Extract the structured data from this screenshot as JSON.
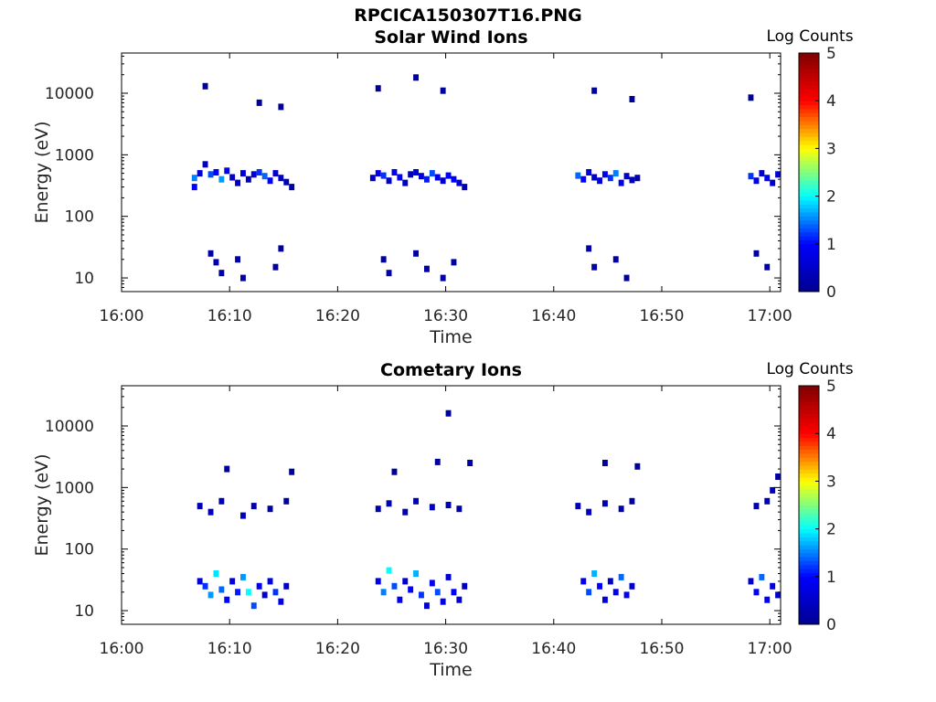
{
  "figure_title": "RPCICA150307T16.PNG",
  "colors": {
    "jet_stops": [
      "#00008f",
      "#0000ff",
      "#00ffff",
      "#ffff00",
      "#ff0000",
      "#800000"
    ]
  },
  "chart_data": [
    {
      "type": "heatmap",
      "title": "Solar Wind Ions",
      "xlabel": "Time",
      "ylabel": "Energy (eV)",
      "xlim": [
        "16:00",
        "17:01"
      ],
      "ylim": [
        6,
        45000
      ],
      "yscale": "log",
      "x_ticks": [
        "16:00",
        "16:10",
        "16:20",
        "16:30",
        "16:40",
        "16:50",
        "17:00"
      ],
      "y_ticks": [
        "10",
        "100",
        "1000",
        "10000"
      ],
      "colorbar": {
        "label": "Log Counts",
        "range": [
          0,
          5
        ],
        "ticks": [
          "0",
          "1",
          "2",
          "3",
          "4",
          "5"
        ]
      },
      "grid": false,
      "cells": [
        [
          "16:06:30",
          420,
          1.5
        ],
        [
          "16:06:30",
          300,
          1.0
        ],
        [
          "16:07:00",
          500,
          0.6
        ],
        [
          "16:07:30",
          700,
          0.3
        ],
        [
          "16:08:00",
          480,
          1.3
        ],
        [
          "16:08:30",
          520,
          1.0
        ],
        [
          "16:09:00",
          400,
          1.6
        ],
        [
          "16:09:30",
          550,
          0.8
        ],
        [
          "16:10:00",
          430,
          0.5
        ],
        [
          "16:10:30",
          350,
          0.4
        ],
        [
          "16:11:00",
          500,
          0.6
        ],
        [
          "16:11:30",
          400,
          0.3
        ],
        [
          "16:12:00",
          480,
          0.7
        ],
        [
          "16:12:30",
          520,
          1.2
        ],
        [
          "16:13:00",
          450,
          1.4
        ],
        [
          "16:13:30",
          380,
          1.0
        ],
        [
          "16:14:00",
          500,
          0.6
        ],
        [
          "16:14:30",
          420,
          0.5
        ],
        [
          "16:15:00",
          360,
          0.3
        ],
        [
          "16:15:30",
          300,
          0.2
        ],
        [
          "16:08:00",
          25,
          0.2
        ],
        [
          "16:08:30",
          18,
          0.3
        ],
        [
          "16:09:00",
          12,
          0.2
        ],
        [
          "16:10:30",
          20,
          0.2
        ],
        [
          "16:11:00",
          10,
          0.2
        ],
        [
          "16:14:00",
          15,
          0.2
        ],
        [
          "16:14:30",
          30,
          0.1
        ],
        [
          "16:07:30",
          13000,
          0.1
        ],
        [
          "16:12:30",
          7000,
          0.1
        ],
        [
          "16:14:30",
          6000,
          0.1
        ],
        [
          "16:23:00",
          420,
          0.5
        ],
        [
          "16:23:30",
          500,
          0.8
        ],
        [
          "16:24:00",
          460,
          1.2
        ],
        [
          "16:24:30",
          380,
          0.6
        ],
        [
          "16:25:00",
          520,
          0.9
        ],
        [
          "16:25:30",
          430,
          1.0
        ],
        [
          "16:26:00",
          350,
          0.5
        ],
        [
          "16:26:30",
          480,
          0.4
        ],
        [
          "16:27:00",
          520,
          0.6
        ],
        [
          "16:27:30",
          450,
          0.7
        ],
        [
          "16:28:00",
          400,
          1.1
        ],
        [
          "16:28:30",
          500,
          1.3
        ],
        [
          "16:29:00",
          430,
          0.8
        ],
        [
          "16:29:30",
          380,
          0.5
        ],
        [
          "16:30:00",
          460,
          0.9
        ],
        [
          "16:30:30",
          400,
          1.0
        ],
        [
          "16:31:00",
          350,
          0.6
        ],
        [
          "16:31:30",
          300,
          0.3
        ],
        [
          "16:24:00",
          20,
          0.2
        ],
        [
          "16:24:30",
          12,
          0.3
        ],
        [
          "16:27:00",
          25,
          0.2
        ],
        [
          "16:28:00",
          14,
          0.2
        ],
        [
          "16:29:30",
          10,
          0.2
        ],
        [
          "16:30:30",
          18,
          0.2
        ],
        [
          "16:23:30",
          12000,
          0.1
        ],
        [
          "16:27:00",
          18000,
          0.1
        ],
        [
          "16:29:30",
          11000,
          0.1
        ],
        [
          "16:42:00",
          460,
          1.4
        ],
        [
          "16:42:30",
          400,
          1.0
        ],
        [
          "16:43:00",
          520,
          0.7
        ],
        [
          "16:43:30",
          430,
          0.5
        ],
        [
          "16:44:00",
          380,
          0.6
        ],
        [
          "16:44:30",
          480,
          0.9
        ],
        [
          "16:45:00",
          420,
          1.2
        ],
        [
          "16:45:30",
          500,
          1.5
        ],
        [
          "16:46:00",
          350,
          0.8
        ],
        [
          "16:46:30",
          450,
          0.6
        ],
        [
          "16:47:00",
          390,
          0.4
        ],
        [
          "16:47:30",
          420,
          0.3
        ],
        [
          "16:43:00",
          30,
          0.2
        ],
        [
          "16:43:30",
          15,
          0.2
        ],
        [
          "16:45:30",
          20,
          0.2
        ],
        [
          "16:46:30",
          10,
          0.2
        ],
        [
          "16:43:30",
          11000,
          0.1
        ],
        [
          "16:47:00",
          8000,
          0.1
        ],
        [
          "16:58:00",
          450,
          1.2
        ],
        [
          "16:58:30",
          380,
          0.8
        ],
        [
          "16:59:00",
          500,
          0.6
        ],
        [
          "16:59:30",
          420,
          1.0
        ],
        [
          "17:00:00",
          350,
          0.5
        ],
        [
          "17:00:30",
          480,
          0.7
        ],
        [
          "16:58:30",
          25,
          0.2
        ],
        [
          "16:59:30",
          15,
          0.2
        ],
        [
          "16:58:00",
          8500,
          0.1
        ]
      ]
    },
    {
      "type": "heatmap",
      "title": "Cometary Ions",
      "xlabel": "Time",
      "ylabel": "Energy (eV)",
      "xlim": [
        "16:00",
        "17:01"
      ],
      "ylim": [
        6,
        45000
      ],
      "yscale": "log",
      "x_ticks": [
        "16:00",
        "16:10",
        "16:20",
        "16:30",
        "16:40",
        "16:50",
        "17:00"
      ],
      "y_ticks": [
        "10",
        "100",
        "1000",
        "10000"
      ],
      "colorbar": {
        "label": "Log Counts",
        "range": [
          0,
          5
        ],
        "ticks": [
          "0",
          "1",
          "2",
          "3",
          "4",
          "5"
        ]
      },
      "grid": false,
      "cells": [
        [
          "16:07:00",
          30,
          0.7
        ],
        [
          "16:07:30",
          25,
          1.2
        ],
        [
          "16:08:00",
          18,
          1.6
        ],
        [
          "16:08:30",
          40,
          1.9
        ],
        [
          "16:09:00",
          22,
          1.4
        ],
        [
          "16:09:30",
          15,
          1.0
        ],
        [
          "16:10:00",
          30,
          0.7
        ],
        [
          "16:10:30",
          20,
          1.1
        ],
        [
          "16:11:00",
          35,
          1.6
        ],
        [
          "16:11:30",
          20,
          2.0
        ],
        [
          "16:12:00",
          12,
          1.3
        ],
        [
          "16:12:30",
          25,
          0.9
        ],
        [
          "16:13:00",
          18,
          0.6
        ],
        [
          "16:13:30",
          30,
          0.8
        ],
        [
          "16:14:00",
          20,
          1.2
        ],
        [
          "16:14:30",
          14,
          0.9
        ],
        [
          "16:15:00",
          25,
          0.5
        ],
        [
          "16:07:00",
          500,
          0.3
        ],
        [
          "16:08:00",
          400,
          0.4
        ],
        [
          "16:09:00",
          600,
          0.3
        ],
        [
          "16:11:00",
          350,
          0.4
        ],
        [
          "16:12:00",
          500,
          0.3
        ],
        [
          "16:13:30",
          450,
          0.2
        ],
        [
          "16:15:00",
          600,
          0.2
        ],
        [
          "16:09:30",
          2000,
          0.1
        ],
        [
          "16:15:30",
          1800,
          0.1
        ],
        [
          "16:23:30",
          30,
          0.8
        ],
        [
          "16:24:00",
          20,
          1.5
        ],
        [
          "16:24:30",
          45,
          2.0
        ],
        [
          "16:25:00",
          25,
          1.3
        ],
        [
          "16:25:30",
          15,
          0.9
        ],
        [
          "16:26:00",
          30,
          0.6
        ],
        [
          "16:26:30",
          22,
          1.0
        ],
        [
          "16:27:00",
          40,
          1.7
        ],
        [
          "16:27:30",
          18,
          1.2
        ],
        [
          "16:28:00",
          12,
          0.7
        ],
        [
          "16:28:30",
          28,
          0.9
        ],
        [
          "16:29:00",
          20,
          1.3
        ],
        [
          "16:29:30",
          14,
          0.8
        ],
        [
          "16:30:00",
          35,
          0.6
        ],
        [
          "16:30:30",
          20,
          0.9
        ],
        [
          "16:31:00",
          15,
          0.5
        ],
        [
          "16:31:30",
          25,
          0.4
        ],
        [
          "16:23:30",
          450,
          0.3
        ],
        [
          "16:24:30",
          550,
          0.4
        ],
        [
          "16:26:00",
          400,
          0.3
        ],
        [
          "16:27:00",
          600,
          0.3
        ],
        [
          "16:28:30",
          480,
          0.4
        ],
        [
          "16:30:00",
          520,
          0.3
        ],
        [
          "16:31:00",
          450,
          0.2
        ],
        [
          "16:25:00",
          1800,
          0.1
        ],
        [
          "16:29:00",
          2600,
          0.1
        ],
        [
          "16:30:00",
          16000,
          0.1
        ],
        [
          "16:32:00",
          2500,
          0.1
        ],
        [
          "16:42:30",
          30,
          0.8
        ],
        [
          "16:43:00",
          20,
          1.3
        ],
        [
          "16:43:30",
          40,
          1.7
        ],
        [
          "16:44:00",
          25,
          1.0
        ],
        [
          "16:44:30",
          15,
          0.7
        ],
        [
          "16:45:00",
          30,
          0.5
        ],
        [
          "16:45:30",
          20,
          0.8
        ],
        [
          "16:46:00",
          35,
          1.4
        ],
        [
          "16:46:30",
          18,
          1.0
        ],
        [
          "16:47:00",
          25,
          0.6
        ],
        [
          "16:42:00",
          500,
          0.3
        ],
        [
          "16:43:00",
          400,
          0.4
        ],
        [
          "16:44:30",
          550,
          0.3
        ],
        [
          "16:46:00",
          450,
          0.3
        ],
        [
          "16:47:00",
          600,
          0.2
        ],
        [
          "16:44:30",
          2500,
          0.1
        ],
        [
          "16:47:30",
          2200,
          0.1
        ],
        [
          "16:58:00",
          30,
          0.6
        ],
        [
          "16:58:30",
          20,
          1.0
        ],
        [
          "16:59:00",
          35,
          1.4
        ],
        [
          "16:59:30",
          15,
          0.9
        ],
        [
          "17:00:00",
          25,
          0.7
        ],
        [
          "17:00:30",
          18,
          0.5
        ],
        [
          "16:58:30",
          500,
          0.3
        ],
        [
          "16:59:30",
          600,
          0.3
        ],
        [
          "17:00:00",
          900,
          0.4
        ],
        [
          "17:00:30",
          1500,
          0.2
        ]
      ]
    }
  ]
}
